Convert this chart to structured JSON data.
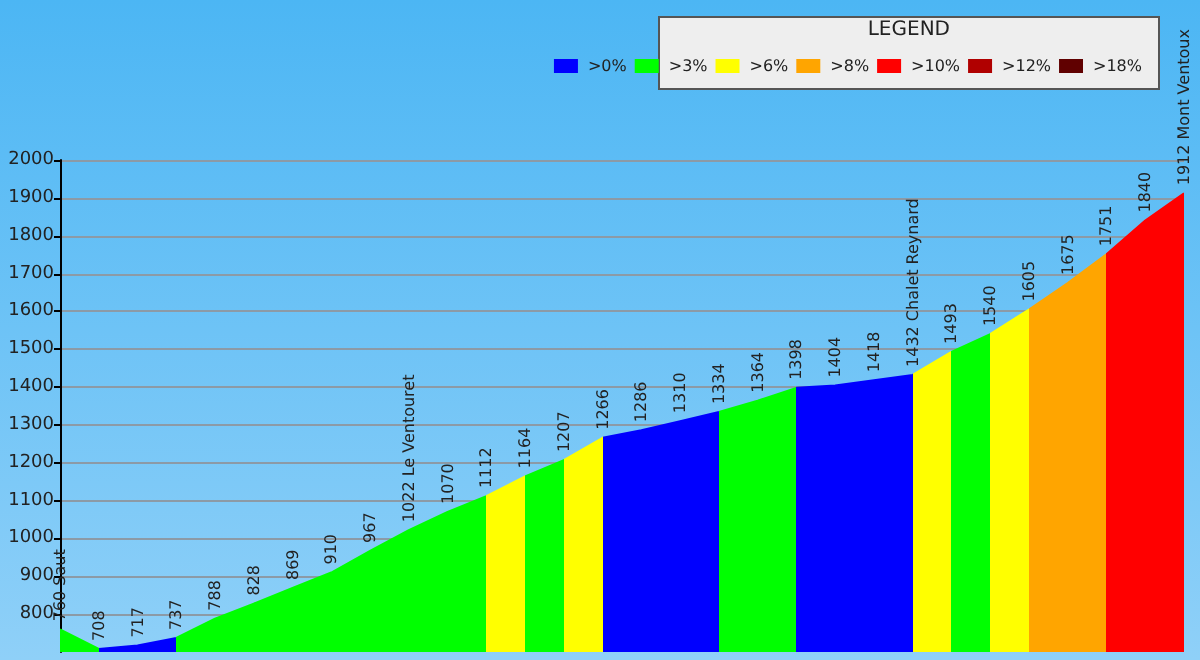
{
  "chart_data": {
    "type": "area",
    "legend_title": "LEGEND",
    "legend": "top right",
    "tick_labels": "y",
    "grid": "y",
    "marker": "none",
    "categories": [
      null,
      null,
      null,
      null,
      null,
      null,
      null,
      null,
      null,
      null,
      null,
      null,
      null,
      null,
      null,
      null,
      null,
      null,
      null,
      null,
      null,
      null,
      null,
      null,
      null,
      null,
      null,
      null,
      null,
      null
    ],
    "values": [
      760,
      708,
      717,
      737,
      788,
      828,
      869,
      910,
      967,
      1022,
      1070,
      1112,
      1164,
      1207,
      1266,
      1286,
      1310,
      1334,
      1364,
      1398,
      1404,
      1418,
      1432,
      1493,
      1540,
      1605,
      1675,
      1751,
      1840,
      1912
    ],
    "value_labels": [
      "760 Saut",
      "708",
      "717",
      "737",
      "788",
      "828",
      "869",
      "910",
      "967",
      "1022 Le Ventouret",
      "1070",
      "1112",
      "1164",
      "1207",
      "1266",
      "1286",
      "1310",
      "1334",
      "1364",
      "1398",
      "1404",
      "1418",
      "1432 Chalet Reynard",
      "1493",
      "1540",
      "1605",
      "1675",
      "1751",
      "1840",
      "1912 Mont Ventoux"
    ],
    "colors": [
      "#00ff00",
      "#0000ff",
      "#0000ff",
      "#00ff00",
      "#00ff00",
      "#00ff00",
      "#00ff00",
      "#00ff00",
      "#00ff00",
      "#00ff00",
      "#00ff00",
      "#ffff00",
      "#00ff00",
      "#ffff00",
      "#0000ff",
      "#0000ff",
      "#0000ff",
      "#00ff00",
      "#00ff00",
      "#0000ff",
      "#0000ff",
      "#0000ff",
      "#ffff00",
      "#00ff00",
      "#ffff00",
      "#ffa500",
      "#ffa500",
      "#ff0000",
      "#ff0000",
      "#ff0000"
    ],
    "series": [
      {
        "name": ">0%",
        "color": "#0000ff",
        "values": [
          null,
          null,
          null,
          null,
          null,
          null,
          null,
          null,
          null,
          null,
          null,
          null,
          null,
          null,
          null,
          null,
          null,
          null,
          null,
          null,
          null,
          null,
          null,
          null,
          null,
          null,
          null,
          null,
          null,
          null
        ]
      },
      {
        "name": ">3%",
        "color": "#00ff00",
        "values": [
          null,
          null,
          null,
          null,
          null,
          null,
          null,
          null,
          null,
          null,
          null,
          null,
          null,
          null,
          null,
          null,
          null,
          null,
          null,
          null,
          null,
          null,
          null,
          null,
          null,
          null,
          null,
          null,
          null,
          null
        ]
      },
      {
        "name": ">6%",
        "color": "#ffff00",
        "values": [
          null,
          null,
          null,
          null,
          null,
          null,
          null,
          null,
          null,
          null,
          null,
          null,
          null,
          null,
          null,
          null,
          null,
          null,
          null,
          null,
          null,
          null,
          null,
          null,
          null,
          null,
          null,
          null,
          null,
          null
        ]
      },
      {
        "name": ">8%",
        "color": "#ffa500",
        "values": [
          null,
          null,
          null,
          null,
          null,
          null,
          null,
          null,
          null,
          null,
          null,
          null,
          null,
          null,
          null,
          null,
          null,
          null,
          null,
          null,
          null,
          null,
          null,
          null,
          null,
          null,
          null,
          null,
          null,
          null
        ]
      },
      {
        "name": ">10%",
        "color": "#ff0000",
        "values": [
          null,
          null,
          null,
          null,
          null,
          null,
          null,
          null,
          null,
          null,
          null,
          null,
          null,
          null,
          null,
          null,
          null,
          null,
          null,
          null,
          null,
          null,
          null,
          null,
          null,
          null,
          null,
          null,
          null,
          null
        ]
      },
      {
        "name": ">12%",
        "color": "#b00000",
        "values": [
          null,
          null,
          null,
          null,
          null,
          null,
          null,
          null,
          null,
          null,
          null,
          null,
          null,
          null,
          null,
          null,
          null,
          null,
          null,
          null,
          null,
          null,
          null,
          null,
          null,
          null,
          null,
          null,
          null,
          null
        ]
      },
      {
        "name": ">18%",
        "color": "#600000",
        "values": [
          null,
          null,
          null,
          null,
          null,
          null,
          null,
          null,
          null,
          null,
          null,
          null,
          null,
          null,
          null,
          null,
          null,
          null,
          null,
          null,
          null,
          null,
          null,
          null,
          null,
          null,
          null,
          null,
          null,
          null
        ]
      }
    ],
    "ylim": [
      700,
      2000
    ],
    "yticks": [
      800,
      900,
      1000,
      1100,
      1200,
      1300,
      1400,
      1500,
      1600,
      1700,
      1800,
      1900,
      2000
    ]
  }
}
